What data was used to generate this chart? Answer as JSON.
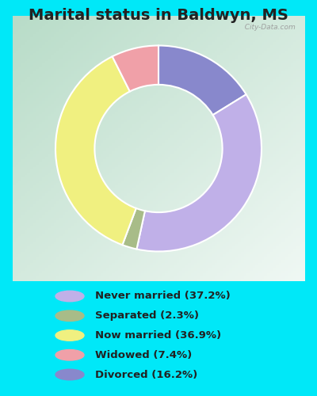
{
  "title": "Marital status in Baldwyn, MS",
  "categories": [
    "Never married",
    "Separated",
    "Now married",
    "Widowed",
    "Divorced"
  ],
  "values": [
    37.2,
    2.3,
    36.9,
    7.4,
    16.2
  ],
  "colors": [
    "#c0b0e8",
    "#a8bc88",
    "#f0f080",
    "#f0a0a8",
    "#8888cc"
  ],
  "legend_labels": [
    "Never married (37.2%)",
    "Separated (2.3%)",
    "Now married (36.9%)",
    "Widowed (7.4%)",
    "Divorced (16.2%)"
  ],
  "bg_cyan": "#00e8f8",
  "chart_bg_color1": "#c8e8d8",
  "chart_bg_color2": "#e8f8f0",
  "title_fontsize": 14,
  "watermark": "City-Data.com",
  "start_angle": 90,
  "plot_order": [
    4,
    0,
    1,
    2,
    3
  ]
}
